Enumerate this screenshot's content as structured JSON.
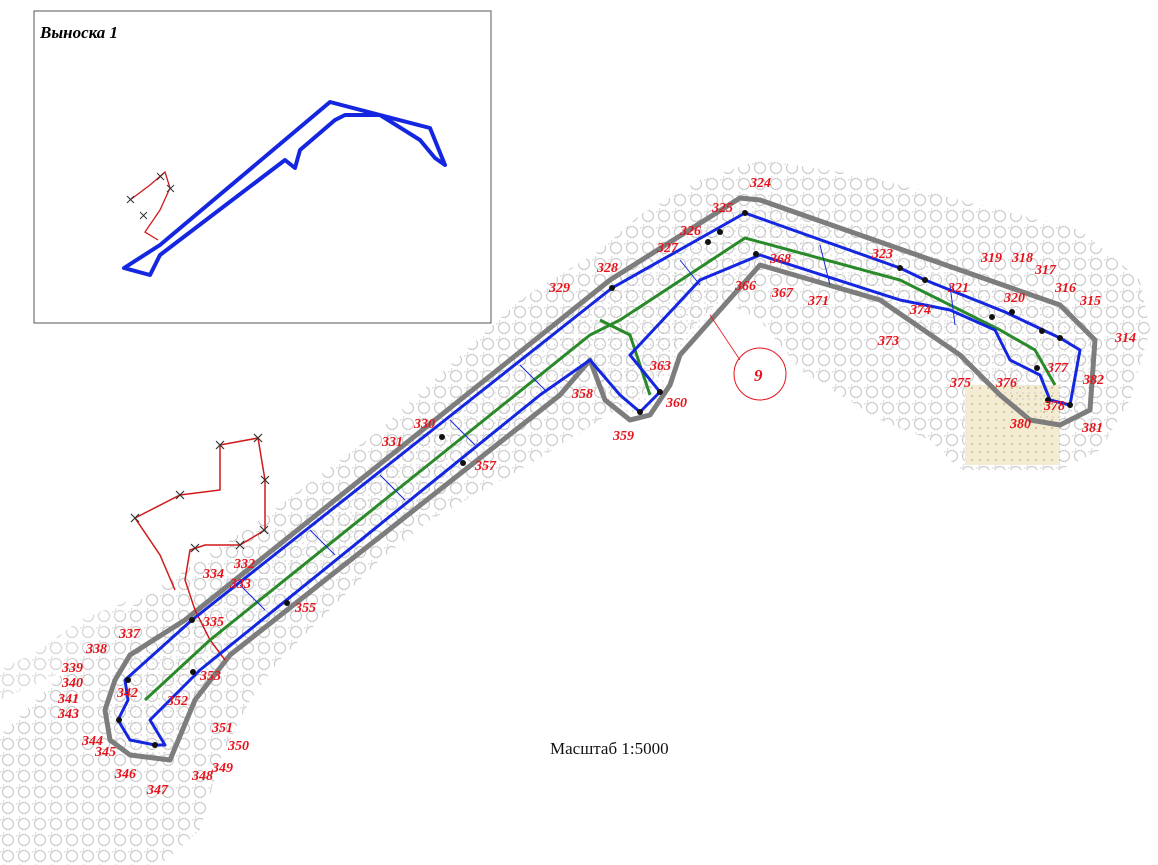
{
  "callout": {
    "title": "Выноска 1"
  },
  "scale": {
    "label": "Масштаб 1:5000"
  },
  "sheet_marker": {
    "label": "9"
  },
  "colors": {
    "boundary": "#1426e0",
    "axis": "#2a8a2a",
    "buffer": "#7d7d7d",
    "cadastre": "#d01a1a",
    "labels": "#e8121b",
    "texture": "#c9c9c9"
  },
  "points": [
    "314",
    "315",
    "316",
    "317",
    "318",
    "319",
    "320",
    "321",
    "323",
    "324",
    "325",
    "326",
    "327",
    "328",
    "329",
    "330",
    "331",
    "332",
    "333",
    "334",
    "335",
    "337",
    "338",
    "339",
    "340",
    "341",
    "342",
    "343",
    "344",
    "345",
    "346",
    "347",
    "348",
    "349",
    "350",
    "351",
    "352",
    "353",
    "355",
    "357",
    "358",
    "359",
    "360",
    "363",
    "366",
    "367",
    "368",
    "371",
    "373",
    "374",
    "375",
    "376",
    "377",
    "378",
    "380",
    "381",
    "382"
  ]
}
